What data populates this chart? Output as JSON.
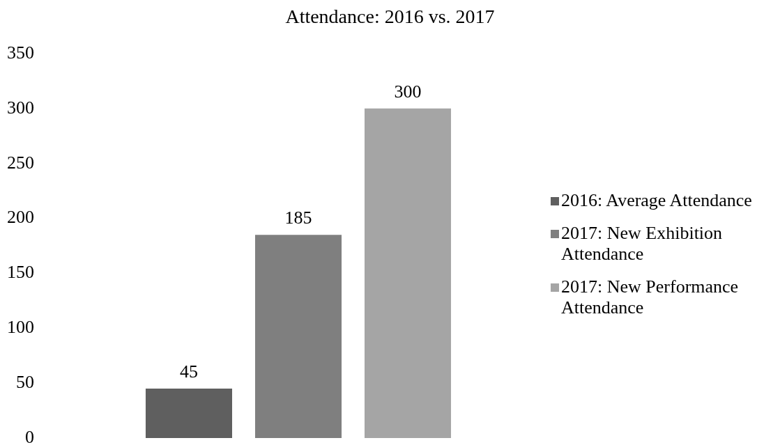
{
  "chart_data": {
    "type": "bar",
    "title": "Attendance: 2016 vs. 2017",
    "categories": [
      null
    ],
    "series": [
      {
        "name": "2016: Average Attendance",
        "color": "#5f5f5f",
        "values": [
          45
        ]
      },
      {
        "name": "2017: New Exhibition Attendance",
        "color": "#7f7f7f",
        "values": [
          185
        ]
      },
      {
        "name": "2017: New Performance Attendance",
        "color": "#a5a5a5",
        "values": [
          300
        ]
      }
    ],
    "ylim": [
      0,
      350
    ],
    "yticks": [
      0,
      50,
      100,
      150,
      200,
      250,
      300,
      350
    ],
    "legend": "right",
    "data_labels": true
  }
}
